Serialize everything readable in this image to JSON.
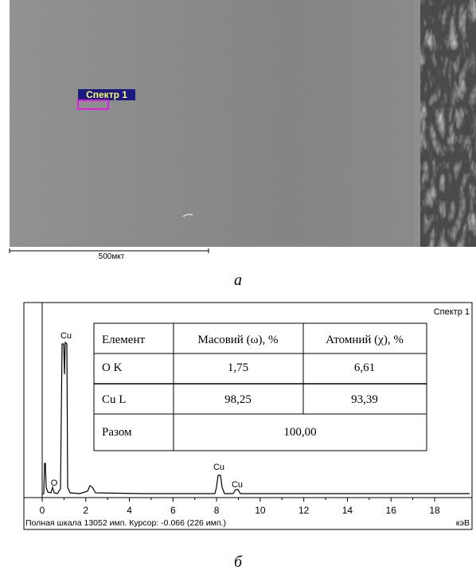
{
  "figure_a": {
    "spectrum_label": "Спектр 1",
    "scale_bar": "500мкт",
    "caption": "а"
  },
  "figure_b": {
    "title": "Спектр 1",
    "peak_labels": [
      "Cu",
      "O",
      "Cu",
      "Cu"
    ],
    "table": {
      "header": [
        "Елемент",
        "Масовий (ω), %",
        "Атомний (χ), %"
      ],
      "rows": [
        [
          "O K",
          "1,75",
          "6,61"
        ],
        [
          "Cu L",
          "98,25",
          "93,39"
        ],
        [
          "Разом",
          "100,00"
        ]
      ]
    },
    "x_ticks": [
      0,
      2,
      4,
      6,
      8,
      10,
      12,
      14,
      16,
      18
    ],
    "x_unit": "кэВ",
    "footer": "Полная шкала 13052 имп. Курсор: -0.066 (226 имп.)",
    "caption": "б"
  }
}
